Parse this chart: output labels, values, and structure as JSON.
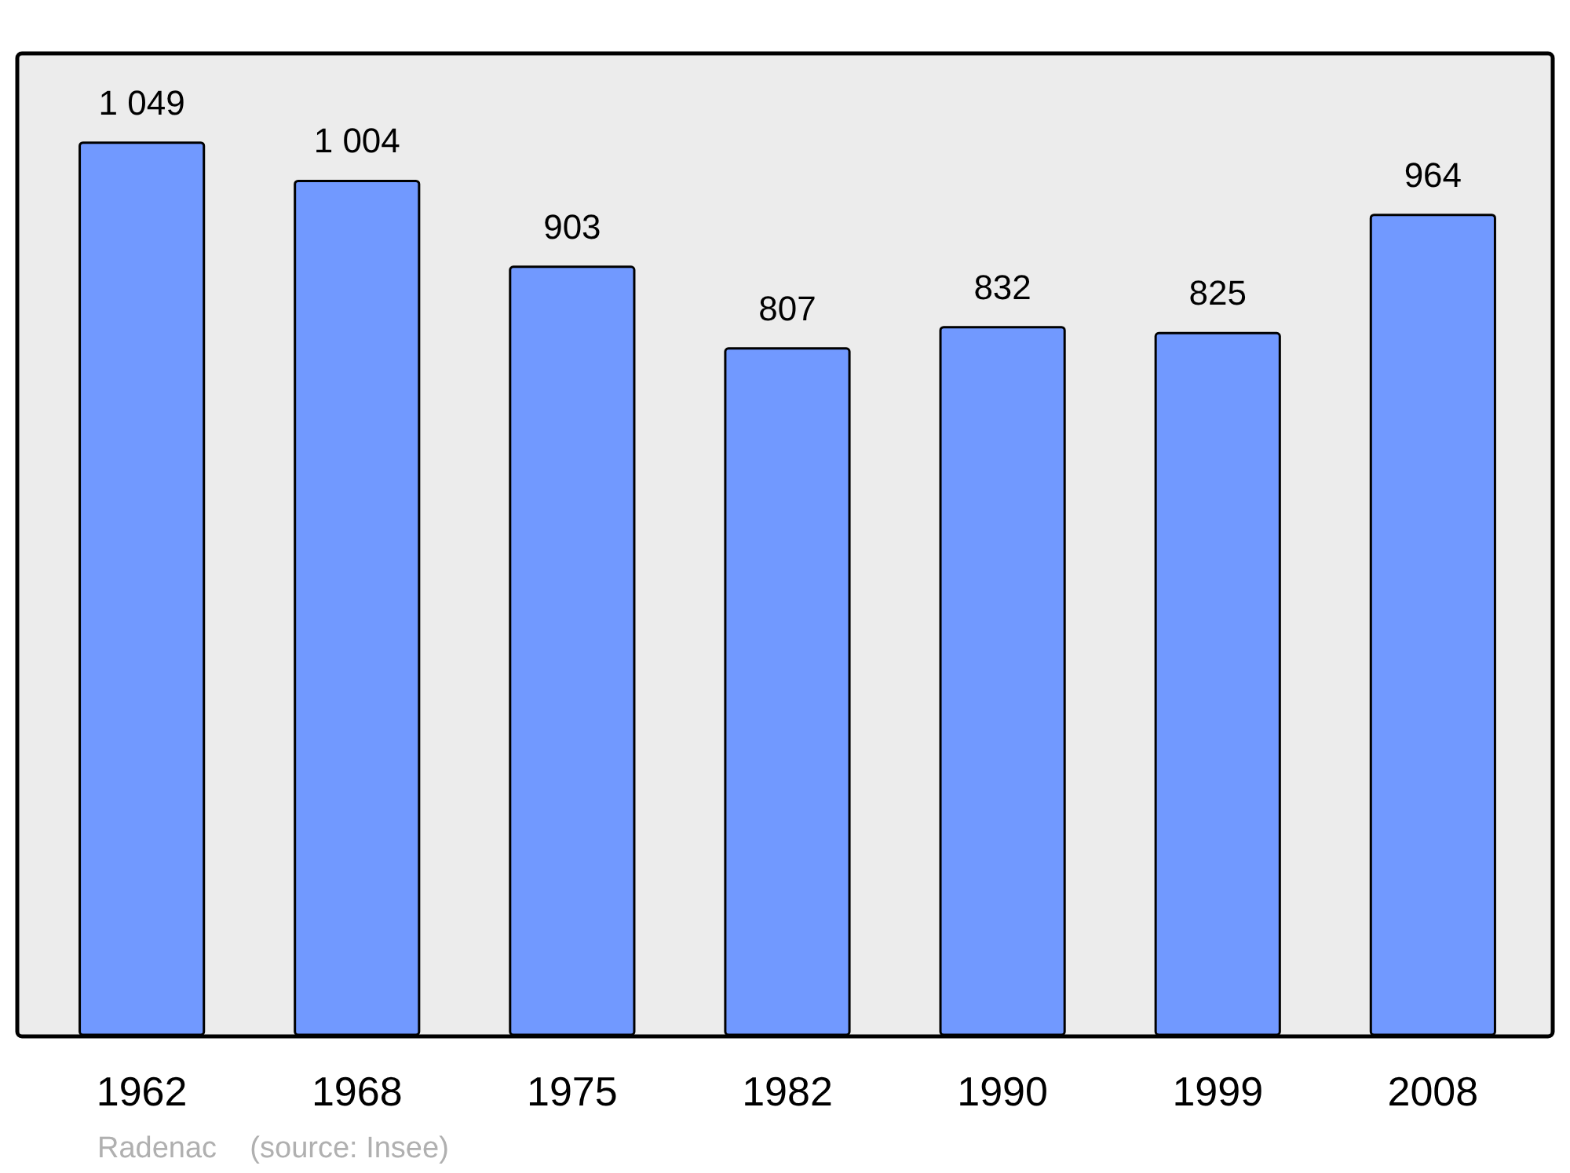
{
  "chart_data": {
    "type": "bar",
    "categories": [
      "1962",
      "1968",
      "1975",
      "1982",
      "1990",
      "1999",
      "2008"
    ],
    "values": [
      1049,
      1004,
      903,
      807,
      832,
      825,
      964
    ],
    "value_labels": [
      "1 049",
      "1 004",
      "903",
      "807",
      "832",
      "825",
      "964"
    ],
    "color": "#7199ff",
    "annotations": [
      "Radenac    (source: Insee)"
    ]
  }
}
